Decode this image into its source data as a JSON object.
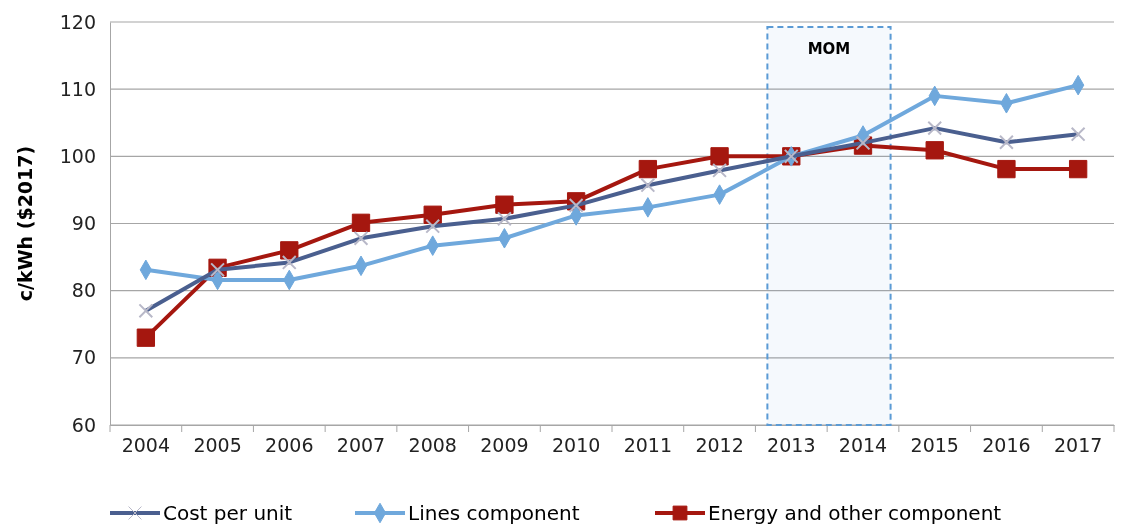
{
  "chart_data": {
    "type": "line",
    "ylabel": "c/kWh ($2017)",
    "categories": [
      "2004",
      "2005",
      "2006",
      "2007",
      "2008",
      "2009",
      "2010",
      "2011",
      "2012",
      "2013",
      "2014",
      "2015",
      "2016",
      "2017"
    ],
    "series": [
      {
        "name": "Cost per unit",
        "color": "#4a5f8f",
        "marker": "cross",
        "values": [
          77,
          83.1,
          84.2,
          87.8,
          89.6,
          90.7,
          92.7,
          95.7,
          97.9,
          100,
          102,
          104.2,
          102.1,
          103.3
        ]
      },
      {
        "name": "Lines component",
        "color": "#6fa8dc",
        "marker": "diamond",
        "values": [
          83.1,
          81.6,
          81.6,
          83.7,
          86.7,
          87.8,
          91.2,
          92.4,
          94.3,
          100,
          103.1,
          109,
          107.9,
          110.6
        ]
      },
      {
        "name": "Energy and other component",
        "color": "#a5170f",
        "marker": "square",
        "values": [
          73,
          83.4,
          86,
          90.1,
          91.3,
          92.8,
          93.3,
          98.1,
          100,
          100,
          101.6,
          100.9,
          98.1,
          98.1
        ]
      }
    ],
    "ylim": [
      60,
      120
    ],
    "yticks": [
      60,
      70,
      80,
      90,
      100,
      110,
      120
    ],
    "grid": "y",
    "legend": "bottom",
    "bands": [
      {
        "axis": "x",
        "from": "2013",
        "to": "2014",
        "label": "MOM",
        "color": "#5b9bd5"
      }
    ]
  }
}
